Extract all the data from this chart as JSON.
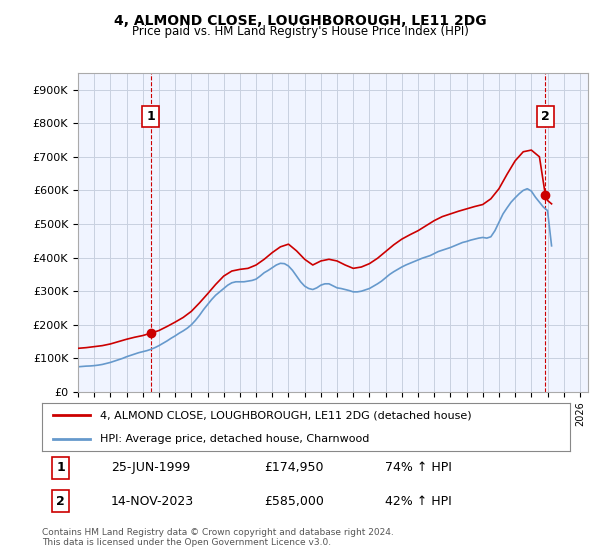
{
  "title": "4, ALMOND CLOSE, LOUGHBOROUGH, LE11 2DG",
  "subtitle": "Price paid vs. HM Land Registry's House Price Index (HPI)",
  "ylabel": "",
  "xlim_start": 1995.0,
  "xlim_end": 2026.5,
  "ylim": [
    0,
    950000
  ],
  "yticks": [
    0,
    100000,
    200000,
    300000,
    400000,
    500000,
    600000,
    700000,
    800000,
    900000
  ],
  "ytick_labels": [
    "£0",
    "£100K",
    "£200K",
    "£300K",
    "£400K",
    "£500K",
    "£600K",
    "£700K",
    "£800K",
    "£900K"
  ],
  "background_color": "#ffffff",
  "plot_bg_color": "#f0f4ff",
  "grid_color": "#c8d0e0",
  "red_line_color": "#cc0000",
  "blue_line_color": "#6699cc",
  "sale1_x": 1999.48,
  "sale1_y": 174950,
  "sale2_x": 2023.87,
  "sale2_y": 585000,
  "sale1_label": "1",
  "sale2_label": "2",
  "legend_red": "4, ALMOND CLOSE, LOUGHBOROUGH, LE11 2DG (detached house)",
  "legend_blue": "HPI: Average price, detached house, Charnwood",
  "annotation1_date": "25-JUN-1999",
  "annotation1_price": "£174,950",
  "annotation1_hpi": "74% ↑ HPI",
  "annotation2_date": "14-NOV-2023",
  "annotation2_price": "£585,000",
  "annotation2_hpi": "42% ↑ HPI",
  "footnote": "Contains HM Land Registry data © Crown copyright and database right 2024.\nThis data is licensed under the Open Government Licence v3.0.",
  "hpi_years": [
    1995.0,
    1995.25,
    1995.5,
    1995.75,
    1996.0,
    1996.25,
    1996.5,
    1996.75,
    1997.0,
    1997.25,
    1997.5,
    1997.75,
    1998.0,
    1998.25,
    1998.5,
    1998.75,
    1999.0,
    1999.25,
    1999.5,
    1999.75,
    2000.0,
    2000.25,
    2000.5,
    2000.75,
    2001.0,
    2001.25,
    2001.5,
    2001.75,
    2002.0,
    2002.25,
    2002.5,
    2002.75,
    2003.0,
    2003.25,
    2003.5,
    2003.75,
    2004.0,
    2004.25,
    2004.5,
    2004.75,
    2005.0,
    2005.25,
    2005.5,
    2005.75,
    2006.0,
    2006.25,
    2006.5,
    2006.75,
    2007.0,
    2007.25,
    2007.5,
    2007.75,
    2008.0,
    2008.25,
    2008.5,
    2008.75,
    2009.0,
    2009.25,
    2009.5,
    2009.75,
    2010.0,
    2010.25,
    2010.5,
    2010.75,
    2011.0,
    2011.25,
    2011.5,
    2011.75,
    2012.0,
    2012.25,
    2012.5,
    2012.75,
    2013.0,
    2013.25,
    2013.5,
    2013.75,
    2014.0,
    2014.25,
    2014.5,
    2014.75,
    2015.0,
    2015.25,
    2015.5,
    2015.75,
    2016.0,
    2016.25,
    2016.5,
    2016.75,
    2017.0,
    2017.25,
    2017.5,
    2017.75,
    2018.0,
    2018.25,
    2018.5,
    2018.75,
    2019.0,
    2019.25,
    2019.5,
    2019.75,
    2020.0,
    2020.25,
    2020.5,
    2020.75,
    2021.0,
    2021.25,
    2021.5,
    2021.75,
    2022.0,
    2022.25,
    2022.5,
    2022.75,
    2023.0,
    2023.25,
    2023.5,
    2023.75,
    2024.0,
    2024.25
  ],
  "hpi_values": [
    75000,
    76000,
    77000,
    77500,
    78500,
    80000,
    82000,
    85000,
    88000,
    92000,
    96000,
    100000,
    105000,
    109000,
    113000,
    117000,
    120000,
    123000,
    127000,
    132000,
    138000,
    145000,
    152000,
    160000,
    167000,
    175000,
    182000,
    190000,
    200000,
    213000,
    228000,
    245000,
    260000,
    275000,
    288000,
    298000,
    308000,
    318000,
    325000,
    328000,
    328000,
    328000,
    330000,
    332000,
    336000,
    345000,
    355000,
    362000,
    370000,
    378000,
    383000,
    382000,
    375000,
    362000,
    345000,
    328000,
    315000,
    308000,
    305000,
    310000,
    318000,
    322000,
    322000,
    316000,
    310000,
    308000,
    305000,
    302000,
    298000,
    298000,
    300000,
    304000,
    308000,
    315000,
    322000,
    330000,
    340000,
    350000,
    358000,
    365000,
    372000,
    378000,
    383000,
    388000,
    393000,
    398000,
    402000,
    406000,
    412000,
    418000,
    422000,
    426000,
    430000,
    435000,
    440000,
    445000,
    448000,
    452000,
    455000,
    458000,
    460000,
    458000,
    462000,
    480000,
    505000,
    530000,
    548000,
    565000,
    578000,
    590000,
    600000,
    605000,
    598000,
    580000,
    565000,
    550000,
    540000,
    435000
  ],
  "red_years_raw": [
    1995.0,
    1995.5,
    1996.0,
    1996.5,
    1997.0,
    1997.5,
    1998.0,
    1998.5,
    1999.0,
    1999.48,
    1999.5,
    2000.0,
    2000.5,
    2001.0,
    2001.5,
    2002.0,
    2002.5,
    2003.0,
    2003.5,
    2004.0,
    2004.5,
    2005.0,
    2005.5,
    2006.0,
    2006.5,
    2007.0,
    2007.5,
    2008.0,
    2008.5,
    2009.0,
    2009.5,
    2010.0,
    2010.5,
    2011.0,
    2011.5,
    2012.0,
    2012.5,
    2013.0,
    2013.5,
    2014.0,
    2014.5,
    2015.0,
    2015.5,
    2016.0,
    2016.5,
    2017.0,
    2017.5,
    2018.0,
    2018.5,
    2019.0,
    2019.5,
    2020.0,
    2020.5,
    2021.0,
    2021.5,
    2022.0,
    2022.5,
    2023.0,
    2023.5,
    2023.87,
    2024.0,
    2024.25
  ],
  "red_values_raw": [
    130000,
    132000,
    135000,
    138000,
    143000,
    150000,
    157000,
    163000,
    168000,
    174950,
    175000,
    183000,
    195000,
    208000,
    222000,
    240000,
    265000,
    292000,
    320000,
    345000,
    360000,
    365000,
    368000,
    378000,
    395000,
    415000,
    432000,
    440000,
    420000,
    395000,
    378000,
    390000,
    395000,
    390000,
    378000,
    368000,
    372000,
    382000,
    398000,
    418000,
    438000,
    455000,
    468000,
    480000,
    495000,
    510000,
    522000,
    530000,
    538000,
    545000,
    552000,
    558000,
    575000,
    605000,
    648000,
    688000,
    715000,
    720000,
    700000,
    585000,
    570000,
    560000
  ]
}
